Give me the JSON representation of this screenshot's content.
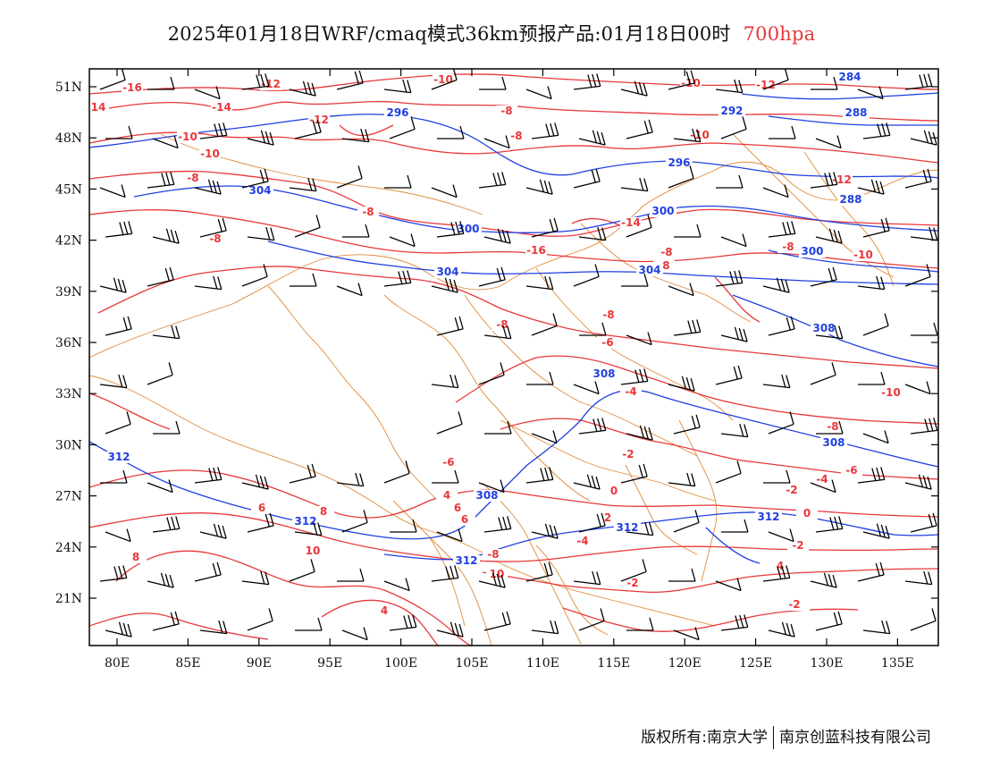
{
  "title": {
    "main": "2025年01月18日WRF/cmaq模式36km预报产品:01月18日00时",
    "level": "700hpa",
    "level_color": "#e8373a"
  },
  "axes": {
    "lat_labels": [
      "51N",
      "48N",
      "45N",
      "42N",
      "39N",
      "36N",
      "33N",
      "30N",
      "27N",
      "24N",
      "21N"
    ],
    "lon_labels": [
      "80E",
      "85E",
      "90E",
      "95E",
      "100E",
      "105E",
      "110E",
      "115E",
      "120E",
      "125E",
      "130E",
      "135E"
    ]
  },
  "legend_colors": {
    "temperature_contours": "#e8373a",
    "geopotential_contours": "#1f3fe0",
    "boundaries": "#e08c3a",
    "wind_barbs": "#000000"
  },
  "contour_labels": {
    "temperature": [
      "14",
      "-16",
      "-12",
      "-14",
      "-10",
      "-12",
      "-10",
      "-8",
      "-10",
      "-8",
      "-10",
      "-8",
      "-8",
      "-8",
      "-14",
      "-16",
      "-10",
      "-12",
      "-8",
      "-12",
      "-10",
      "-8",
      "-8",
      "-8",
      "-6",
      "-8",
      "-4",
      "-10",
      "-2",
      "-6",
      "-4",
      "-8",
      "-6",
      "-8",
      "0",
      "-2",
      "4",
      "6",
      "0",
      "6",
      "2",
      "-4",
      "-2",
      "4",
      "-2",
      "0",
      "-2",
      "8",
      "10",
      "4",
      "8",
      "10",
      "6"
    ],
    "geopotential": [
      "296",
      "304",
      "300",
      "304",
      "308",
      "292",
      "296",
      "300",
      "304",
      "284",
      "288",
      "288",
      "308",
      "300",
      "312",
      "312",
      "312",
      "308",
      "312",
      "312",
      "308"
    ]
  },
  "footer": {
    "left": "版权所有:南京大学",
    "right": "南京创蓝科技有限公司"
  }
}
